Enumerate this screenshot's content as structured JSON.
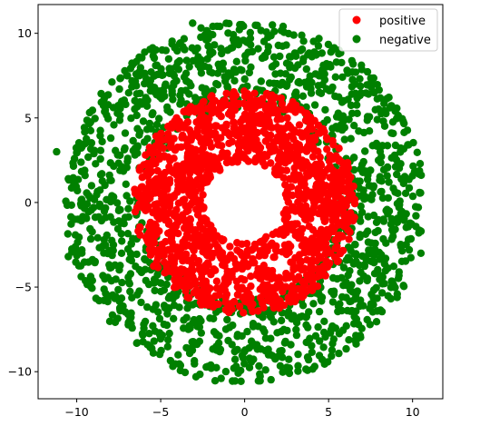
{
  "chart_data": {
    "type": "scatter",
    "title": "",
    "xlabel": "",
    "ylabel": "",
    "xlim": [
      -12.3,
      11.8
    ],
    "ylim": [
      -11.6,
      11.7
    ],
    "xticks": [
      -10,
      -5,
      0,
      5,
      10
    ],
    "yticks": [
      -10,
      -5,
      0,
      5,
      10
    ],
    "xtick_labels": [
      "−10",
      "−5",
      "0",
      "5",
      "10"
    ],
    "ytick_labels": [
      "−10",
      "−5",
      "0",
      "5",
      "10"
    ],
    "grid": false,
    "legend_position": "top-right",
    "series": [
      {
        "name": "negative",
        "color": "#008000",
        "annulus": {
          "r_min": 5.6,
          "r_max": 10.7
        },
        "n_points": 1500,
        "outliers": [
          [
            -11.2,
            3.0
          ],
          [
            10.5,
            -3.0
          ],
          [
            -3.1,
            10.6
          ],
          [
            -2.9,
            -10.3
          ],
          [
            9.8,
            -2.8
          ],
          [
            -10.5,
            -3.2
          ]
        ]
      },
      {
        "name": "positive",
        "color": "#ff0000",
        "annulus": {
          "r_min": 2.4,
          "r_max": 6.6
        },
        "n_points": 1500
      }
    ],
    "legend_order": [
      "positive",
      "negative"
    ]
  }
}
